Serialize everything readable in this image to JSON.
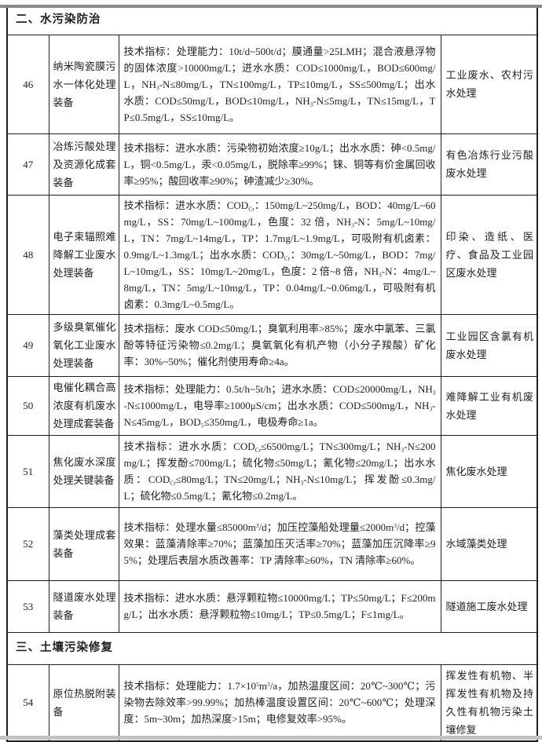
{
  "colors": {
    "page_bg": "#ffffff",
    "border": "#1f1f1f",
    "text": "#1f1f1f",
    "top_edge": "#8a8a8a",
    "bottom_edge": "#c2c2c2"
  },
  "document": {
    "sections": [
      {
        "title": "二、水污染防治",
        "rows": [
          {
            "no": "46",
            "name": "纳米陶瓷膜污水一体化处理装备",
            "tech": "技术指标：处理能力：10t/d~500t/d；膜通量>25LMH；混合液悬浮物的固体浓度>10000mg/L；进水水质：COD≤1000mg/L，BOD≤600mg/L，NH{sub:3}-N≤80mg/L，TN≤100mg/L，TP≤10mg/L，SS≤500mg/L；出水水质：COD≤50mg/L，BOD≤10mg/L，NH{sub:3}-N≤5mg/L，TN≤15mg/L，TP≤0.5mg/L，SS≤10mg/L。",
            "app": "工业废水、农村污水处理"
          },
          {
            "no": "47",
            "name": "冶炼污酸处理及资源化成套装备",
            "tech": "技术指标：进水水质：污染物初始浓度≥10g/L；出水水质：砷<0.5mg/L，铜<0.5mg/L，汞<0.05mg/L，脱除率≥99%；铼、铜等有价金属回收率≥95%；酸回收率≥90%；砷渣减少≥30%。",
            "app": "有色冶炼行业污酸废水处理"
          },
          {
            "no": "48",
            "name": "电子束辐照难降解工业废水处理装备",
            "tech": "技术指标：进水水质：COD{sub:Cr}：150mg/L~250mg/L，BOD：40mg/L~60mg/L，SS：70mg/L~100mg/L，色度：32 倍，NH{sub:3}-N：5mg/L~10mg/L，TN：7mg/L~14mg/L，TP：1.7mg/L~1.9mg/L，可吸附有机卤素：0.9mg/L~1.3mg/L；出水水质：COD{sub:Cr}：30mg/L~50mg/L，BOD：7mg/L~10mg/L，SS：10mg/L~20mg/L，色度：2 倍~8 倍，NH{sub:3}-N：4mg/L~8mg/L，TN：5mg/L~10mg/L，TP：0.04mg/L~0.06mg/L，可吸附有机卤素：0.3mg/L~0.5mg/L。",
            "app": "印染、造纸、医疗、食品及工业园区废水处理"
          },
          {
            "no": "49",
            "name": "多级臭氧催化氧化工业废水处理装备",
            "tech": "技术指标：废水 COD≤50mg/L；臭氧利用率>85%；废水中氯苯、三氯酚等特征污染物≤0.2mg/L；臭氧氧化有机产物（小分子羧酸）矿化率：30%~50%；催化剂使用寿命≥4a。",
            "app": "工业园区含氯有机废水处理"
          },
          {
            "no": "50",
            "name": "电催化耦合高浓度有机废水处理成套装备",
            "tech": "技术指标：处理能力：0.5t/h~5t/h；进水水质：COD≤20000mg/L，NH{sub:3}-N≤1000mg/L，电导率≥1000μS/cm；出水水质：COD≤500mg/L，NH{sub:3}-N≤45mg/L，BOD{sub:5}≤350mg/L，电极寿命≥1a。",
            "app": "难降解工业有机废水处理"
          },
          {
            "no": "51",
            "name": "焦化废水深度处理关键装备",
            "tech": "技术指标：进水水质：COD{sub:Cr}≤6500mg/L；TN≤300mg/L；NH{sub:3}-N≤200mg/L；挥发酚≤700mg/L；硫化物≤50mg/L；氰化物≤20mg/L；出水水质：COD{sub:Cr}≤80mg/L；TN≤20mg/L；NH{sub:3}-N≤10mg/L；挥发酚≤0.3mg/L；硫化物≤0.5mg/L；氰化物≤0.2mg/L。",
            "app": "焦化废水处理"
          },
          {
            "no": "52",
            "name": "藻类处理成套装备",
            "tech": "技术指标：处理水量≤85000m{sup:3}/d；加压控藻船处理量≤2000m{sup:3}/d；控藻效果：蓝藻清除率≥70%；蓝藻加压灭活率≥70%；蓝藻加压沉降率≥95%；处理后表层水质改善率：TP 清除率≥60%，TN 清除率≥60%。",
            "app": "水域藻类处理"
          },
          {
            "no": "53",
            "name": "隧道废水处理装备",
            "tech": "技术指标：进水水质：悬浮颗粒物≤10000mg/L；TP≤50mg/L；F≤200mg/L；出水水质：悬浮颗粒物≤10mg/L；TP≤0.5mg/L；F≤1mg/L。",
            "app": "隧道施工废水处理"
          }
        ]
      },
      {
        "title": "三、土壤污染修复",
        "rows": [
          {
            "no": "54",
            "name": "原位热脱附装备",
            "tech": "技术指标：处理能力：1.7×10{sup:5}m{sup:3}/a，加热温度区间：20℃~300℃；污染物去除效率>99.99%；加热棒温度设置区间：20℃~600℃；处理深度：5m~30m；加热深度>15m；电修复效率>95%。",
            "app": "挥发性有机物、半挥发性有机物及持久性有机物污染土壤修复"
          }
        ]
      }
    ]
  }
}
